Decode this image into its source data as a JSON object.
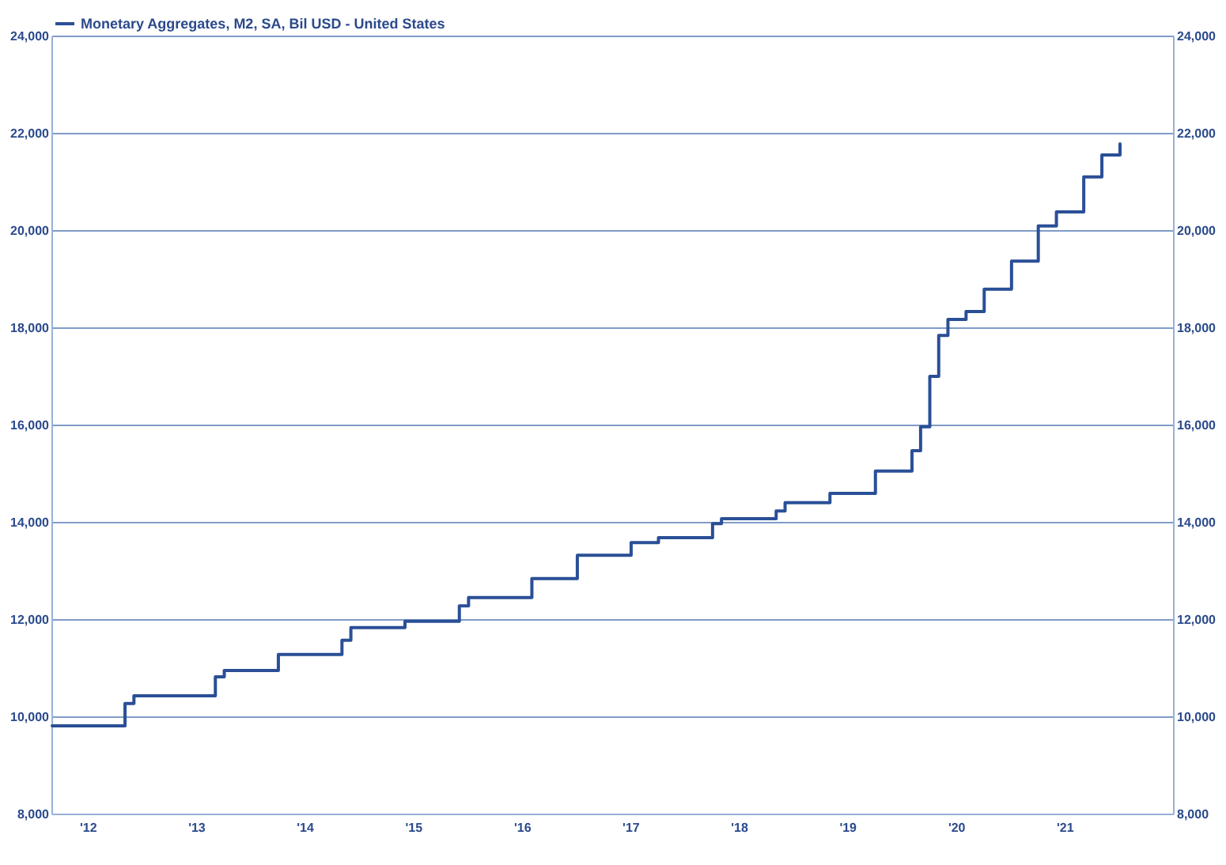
{
  "chart_data": {
    "type": "step",
    "x": [
      "2012-03",
      "2012-11",
      "2012-12",
      "2013-09",
      "2013-10",
      "2014-04",
      "2014-11",
      "2014-12",
      "2015-06",
      "2015-12",
      "2016-01",
      "2016-08",
      "2017-01",
      "2017-07",
      "2017-10",
      "2018-04",
      "2018-05",
      "2018-11",
      "2018-12",
      "2019-05",
      "2019-10",
      "2020-02",
      "2020-03",
      "2020-04",
      "2020-05",
      "2020-06",
      "2020-08",
      "2020-10",
      "2021-01",
      "2021-04",
      "2021-06",
      "2021-09",
      "2021-11",
      "2022-01"
    ],
    "series": [
      {
        "name": "Monetary Aggregates, M2, SA, Bil USD - United States",
        "color": "#2a4f96",
        "values": [
          9820,
          10280,
          10440,
          10830,
          10960,
          11290,
          11580,
          11840,
          11970,
          12290,
          12460,
          12850,
          13330,
          13590,
          13690,
          13980,
          14080,
          14240,
          14410,
          14600,
          15060,
          15480,
          15970,
          17010,
          17850,
          18180,
          18340,
          18800,
          19380,
          20100,
          20390,
          21110,
          21560,
          21790
        ]
      }
    ],
    "xlim": [
      "2012-03",
      "2022-07"
    ],
    "xticks": [
      {
        "value": "2012-07",
        "label": "'12"
      },
      {
        "value": "2013-07",
        "label": "'13"
      },
      {
        "value": "2014-07",
        "label": "'14"
      },
      {
        "value": "2015-07",
        "label": "'15"
      },
      {
        "value": "2016-07",
        "label": "'16"
      },
      {
        "value": "2017-07",
        "label": "'17"
      },
      {
        "value": "2018-07",
        "label": "'18"
      },
      {
        "value": "2019-07",
        "label": "'19"
      },
      {
        "value": "2020-07",
        "label": "'20"
      },
      {
        "value": "2021-07",
        "label": "'21"
      }
    ],
    "ylim": [
      8000,
      24000
    ],
    "yticks": [
      {
        "value": 8000,
        "label": "8,000"
      },
      {
        "value": 10000,
        "label": "10,000"
      },
      {
        "value": 12000,
        "label": "12,000"
      },
      {
        "value": 14000,
        "label": "14,000"
      },
      {
        "value": 16000,
        "label": "16,000"
      },
      {
        "value": 18000,
        "label": "18,000"
      },
      {
        "value": 20000,
        "label": "20,000"
      },
      {
        "value": 22000,
        "label": "22,000"
      },
      {
        "value": 24000,
        "label": "24,000"
      }
    ],
    "y2lim": [
      8000,
      24000
    ],
    "y2ticks": [
      {
        "value": 8000,
        "label": "8,000"
      },
      {
        "value": 10000,
        "label": "10,000"
      },
      {
        "value": 12000,
        "label": "12,000"
      },
      {
        "value": 14000,
        "label": "14,000"
      },
      {
        "value": 16000,
        "label": "16,000"
      },
      {
        "value": 18000,
        "label": "18,000"
      },
      {
        "value": 20000,
        "label": "20,000"
      },
      {
        "value": 22000,
        "label": "22,000"
      },
      {
        "value": 24000,
        "label": "24,000"
      }
    ],
    "grid": "y",
    "legend": "top left",
    "line_style": "solid",
    "marker": "none"
  }
}
